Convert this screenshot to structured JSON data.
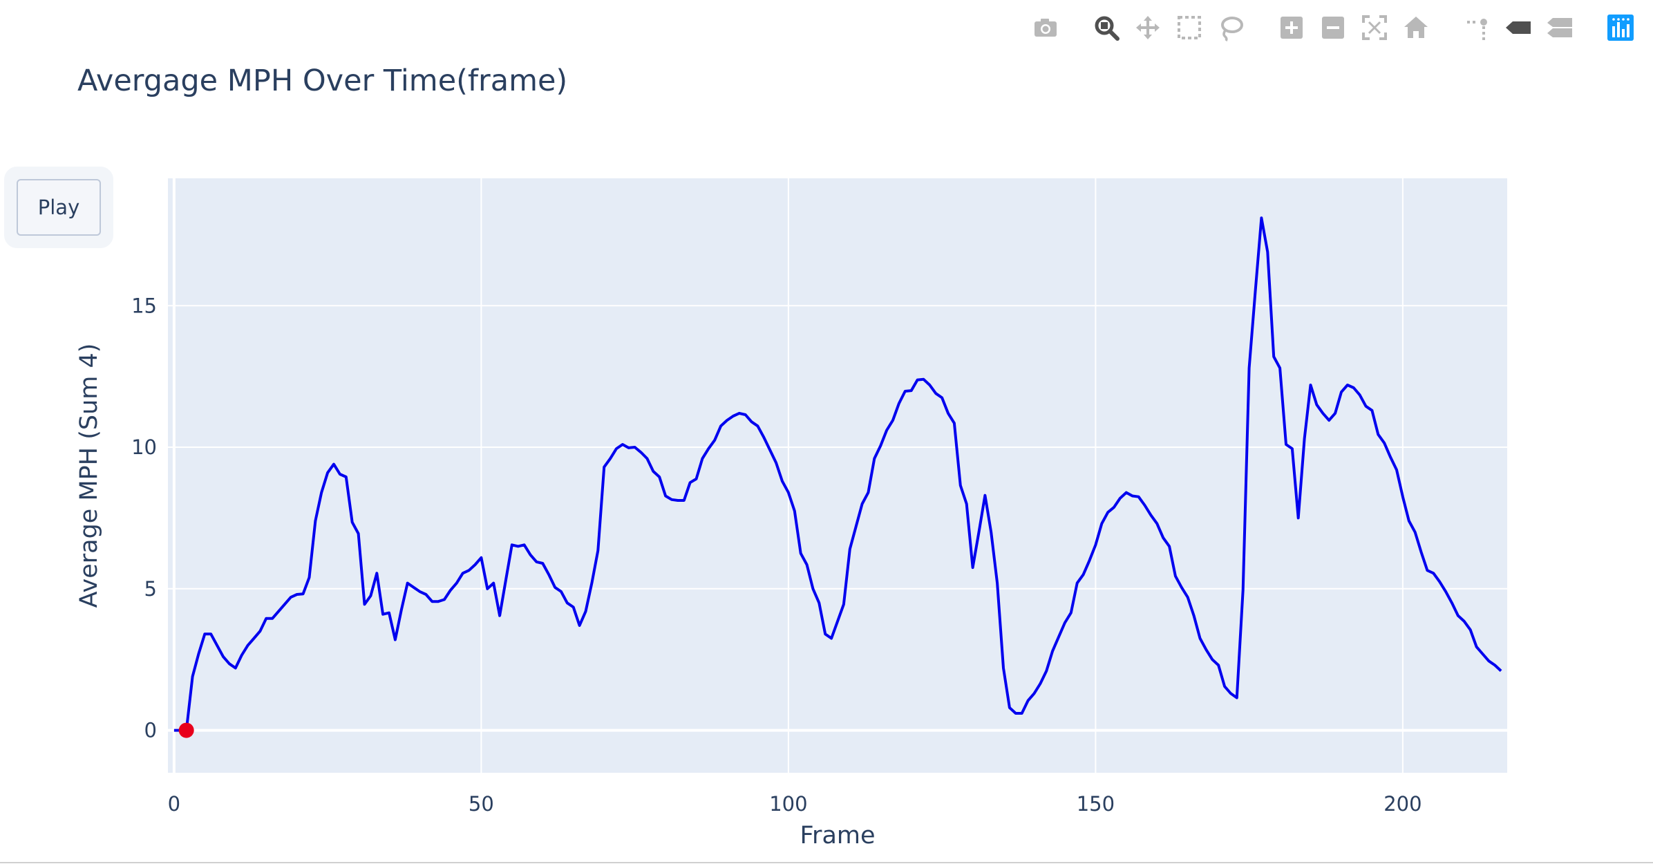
{
  "modebar": {
    "buttons": [
      "camera-icon",
      "zoom-icon",
      "pan-icon",
      "box-select-icon",
      "lasso-select-icon",
      "zoom-in-icon",
      "zoom-out-icon",
      "autoscale-icon",
      "reset-axes-icon",
      "spike-lines-icon",
      "hover-closest-icon",
      "hover-compare-icon",
      "plotly-logo-icon"
    ],
    "active": "zoom-icon"
  },
  "controls": {
    "play_label": "Play"
  },
  "colors": {
    "line": "#0000ee",
    "marker": "#e8001c",
    "plot_bg": "#e5ecf6",
    "grid": "#ffffff",
    "text": "#2a3f5f"
  },
  "chart_data": {
    "type": "line",
    "title": "Avergage MPH Over Time(frame)",
    "xlabel": "Frame",
    "ylabel": "Average MPH (Sum 4)",
    "xlim": [
      -1,
      217
    ],
    "ylim": [
      -1.5,
      19.5
    ],
    "xticks": [
      0,
      50,
      100,
      150,
      200
    ],
    "yticks": [
      0,
      5,
      10,
      15
    ],
    "grid": true,
    "series": [
      {
        "values": [
          [
            0,
            0
          ],
          [
            1,
            0
          ],
          [
            2,
            0
          ],
          [
            3,
            1.9
          ],
          [
            4,
            2.7
          ],
          [
            5,
            3.4
          ],
          [
            6,
            3.4
          ],
          [
            7,
            3.0
          ],
          [
            8,
            2.6
          ],
          [
            9,
            2.35
          ],
          [
            10,
            2.2
          ],
          [
            11,
            2.65
          ],
          [
            12,
            3.0
          ],
          [
            13,
            3.25
          ],
          [
            14,
            3.5
          ],
          [
            15,
            3.95
          ],
          [
            16,
            3.95
          ],
          [
            17,
            4.2
          ],
          [
            18,
            4.45
          ],
          [
            19,
            4.7
          ],
          [
            20,
            4.8
          ],
          [
            21,
            4.82
          ],
          [
            22,
            5.4
          ],
          [
            23,
            7.4
          ],
          [
            24,
            8.4
          ],
          [
            25,
            9.1
          ],
          [
            26,
            9.4
          ],
          [
            27,
            9.05
          ],
          [
            28,
            8.95
          ],
          [
            29,
            7.35
          ],
          [
            30,
            6.95
          ],
          [
            31,
            4.45
          ],
          [
            32,
            4.75
          ],
          [
            33,
            5.55
          ],
          [
            34,
            4.1
          ],
          [
            35,
            4.15
          ],
          [
            36,
            3.2
          ],
          [
            37,
            4.25
          ],
          [
            38,
            5.2
          ],
          [
            39,
            5.05
          ],
          [
            40,
            4.9
          ],
          [
            41,
            4.8
          ],
          [
            42,
            4.55
          ],
          [
            43,
            4.55
          ],
          [
            44,
            4.62
          ],
          [
            45,
            4.95
          ],
          [
            46,
            5.2
          ],
          [
            47,
            5.55
          ],
          [
            48,
            5.65
          ],
          [
            49,
            5.85
          ],
          [
            50,
            6.1
          ],
          [
            51,
            5.0
          ],
          [
            52,
            5.2
          ],
          [
            53,
            4.05
          ],
          [
            54,
            5.3
          ],
          [
            55,
            6.55
          ],
          [
            56,
            6.5
          ],
          [
            57,
            6.55
          ],
          [
            58,
            6.2
          ],
          [
            59,
            5.95
          ],
          [
            60,
            5.9
          ],
          [
            61,
            5.5
          ],
          [
            62,
            5.05
          ],
          [
            63,
            4.9
          ],
          [
            64,
            4.5
          ],
          [
            65,
            4.35
          ],
          [
            66,
            3.7
          ],
          [
            67,
            4.2
          ],
          [
            68,
            5.2
          ],
          [
            69,
            6.35
          ],
          [
            70,
            9.3
          ],
          [
            71,
            9.6
          ],
          [
            72,
            9.95
          ],
          [
            73,
            10.1
          ],
          [
            74,
            9.98
          ],
          [
            75,
            10.0
          ],
          [
            76,
            9.82
          ],
          [
            77,
            9.6
          ],
          [
            78,
            9.15
          ],
          [
            79,
            8.95
          ],
          [
            80,
            8.28
          ],
          [
            81,
            8.15
          ],
          [
            82,
            8.12
          ],
          [
            83,
            8.12
          ],
          [
            84,
            8.75
          ],
          [
            85,
            8.88
          ],
          [
            86,
            9.6
          ],
          [
            87,
            9.95
          ],
          [
            88,
            10.25
          ],
          [
            89,
            10.75
          ],
          [
            90,
            10.95
          ],
          [
            91,
            11.1
          ],
          [
            92,
            11.2
          ],
          [
            93,
            11.15
          ],
          [
            94,
            10.9
          ],
          [
            95,
            10.75
          ],
          [
            96,
            10.35
          ],
          [
            97,
            9.9
          ],
          [
            98,
            9.45
          ],
          [
            99,
            8.8
          ],
          [
            100,
            8.4
          ],
          [
            101,
            7.75
          ],
          [
            102,
            6.25
          ],
          [
            103,
            5.85
          ],
          [
            104,
            5.0
          ],
          [
            105,
            4.5
          ],
          [
            106,
            3.4
          ],
          [
            107,
            3.25
          ],
          [
            108,
            3.85
          ],
          [
            109,
            4.45
          ],
          [
            110,
            6.4
          ],
          [
            111,
            7.2
          ],
          [
            112,
            8.0
          ],
          [
            113,
            8.4
          ],
          [
            114,
            9.6
          ],
          [
            115,
            10.05
          ],
          [
            116,
            10.6
          ],
          [
            117,
            10.95
          ],
          [
            118,
            11.55
          ],
          [
            119,
            11.98
          ],
          [
            120,
            12.0
          ],
          [
            121,
            12.38
          ],
          [
            122,
            12.4
          ],
          [
            123,
            12.2
          ],
          [
            124,
            11.9
          ],
          [
            125,
            11.75
          ],
          [
            126,
            11.2
          ],
          [
            127,
            10.85
          ],
          [
            128,
            8.65
          ],
          [
            129,
            8.0
          ],
          [
            130,
            5.75
          ],
          [
            131,
            7.0
          ],
          [
            132,
            8.3
          ],
          [
            133,
            7.0
          ],
          [
            134,
            5.2
          ],
          [
            135,
            2.2
          ],
          [
            136,
            0.8
          ],
          [
            137,
            0.6
          ],
          [
            138,
            0.6
          ],
          [
            139,
            1.05
          ],
          [
            140,
            1.3
          ],
          [
            141,
            1.65
          ],
          [
            142,
            2.1
          ],
          [
            143,
            2.8
          ],
          [
            144,
            3.3
          ],
          [
            145,
            3.8
          ],
          [
            146,
            4.15
          ],
          [
            147,
            5.2
          ],
          [
            148,
            5.5
          ],
          [
            149,
            6.0
          ],
          [
            150,
            6.55
          ],
          [
            151,
            7.3
          ],
          [
            152,
            7.7
          ],
          [
            153,
            7.88
          ],
          [
            154,
            8.2
          ],
          [
            155,
            8.4
          ],
          [
            156,
            8.28
          ],
          [
            157,
            8.25
          ],
          [
            158,
            7.95
          ],
          [
            159,
            7.6
          ],
          [
            160,
            7.3
          ],
          [
            161,
            6.8
          ],
          [
            162,
            6.5
          ],
          [
            163,
            5.45
          ],
          [
            164,
            5.05
          ],
          [
            165,
            4.7
          ],
          [
            166,
            4.05
          ],
          [
            167,
            3.25
          ],
          [
            168,
            2.85
          ],
          [
            169,
            2.5
          ],
          [
            170,
            2.3
          ],
          [
            171,
            1.55
          ],
          [
            172,
            1.3
          ],
          [
            173,
            1.15
          ],
          [
            174,
            4.95
          ],
          [
            175,
            12.8
          ],
          [
            176,
            15.5
          ],
          [
            177,
            18.1
          ],
          [
            178,
            16.9
          ],
          [
            179,
            13.2
          ],
          [
            180,
            12.8
          ],
          [
            181,
            10.1
          ],
          [
            182,
            9.95
          ],
          [
            183,
            7.5
          ],
          [
            184,
            10.3
          ],
          [
            185,
            12.2
          ],
          [
            186,
            11.5
          ],
          [
            187,
            11.2
          ],
          [
            188,
            10.95
          ],
          [
            189,
            11.2
          ],
          [
            190,
            11.95
          ],
          [
            191,
            12.2
          ],
          [
            192,
            12.1
          ],
          [
            193,
            11.85
          ],
          [
            194,
            11.45
          ],
          [
            195,
            11.3
          ],
          [
            196,
            10.45
          ],
          [
            197,
            10.15
          ],
          [
            198,
            9.65
          ],
          [
            199,
            9.2
          ],
          [
            200,
            8.25
          ],
          [
            201,
            7.4
          ],
          [
            202,
            7.0
          ],
          [
            203,
            6.3
          ],
          [
            204,
            5.65
          ],
          [
            205,
            5.55
          ],
          [
            206,
            5.25
          ],
          [
            207,
            4.9
          ],
          [
            208,
            4.5
          ],
          [
            209,
            4.05
          ],
          [
            210,
            3.85
          ],
          [
            211,
            3.55
          ],
          [
            212,
            2.95
          ],
          [
            213,
            2.7
          ],
          [
            214,
            2.45
          ],
          [
            215,
            2.3
          ],
          [
            216,
            2.1
          ]
        ]
      }
    ],
    "marker": {
      "x": 2,
      "y": 0
    }
  }
}
